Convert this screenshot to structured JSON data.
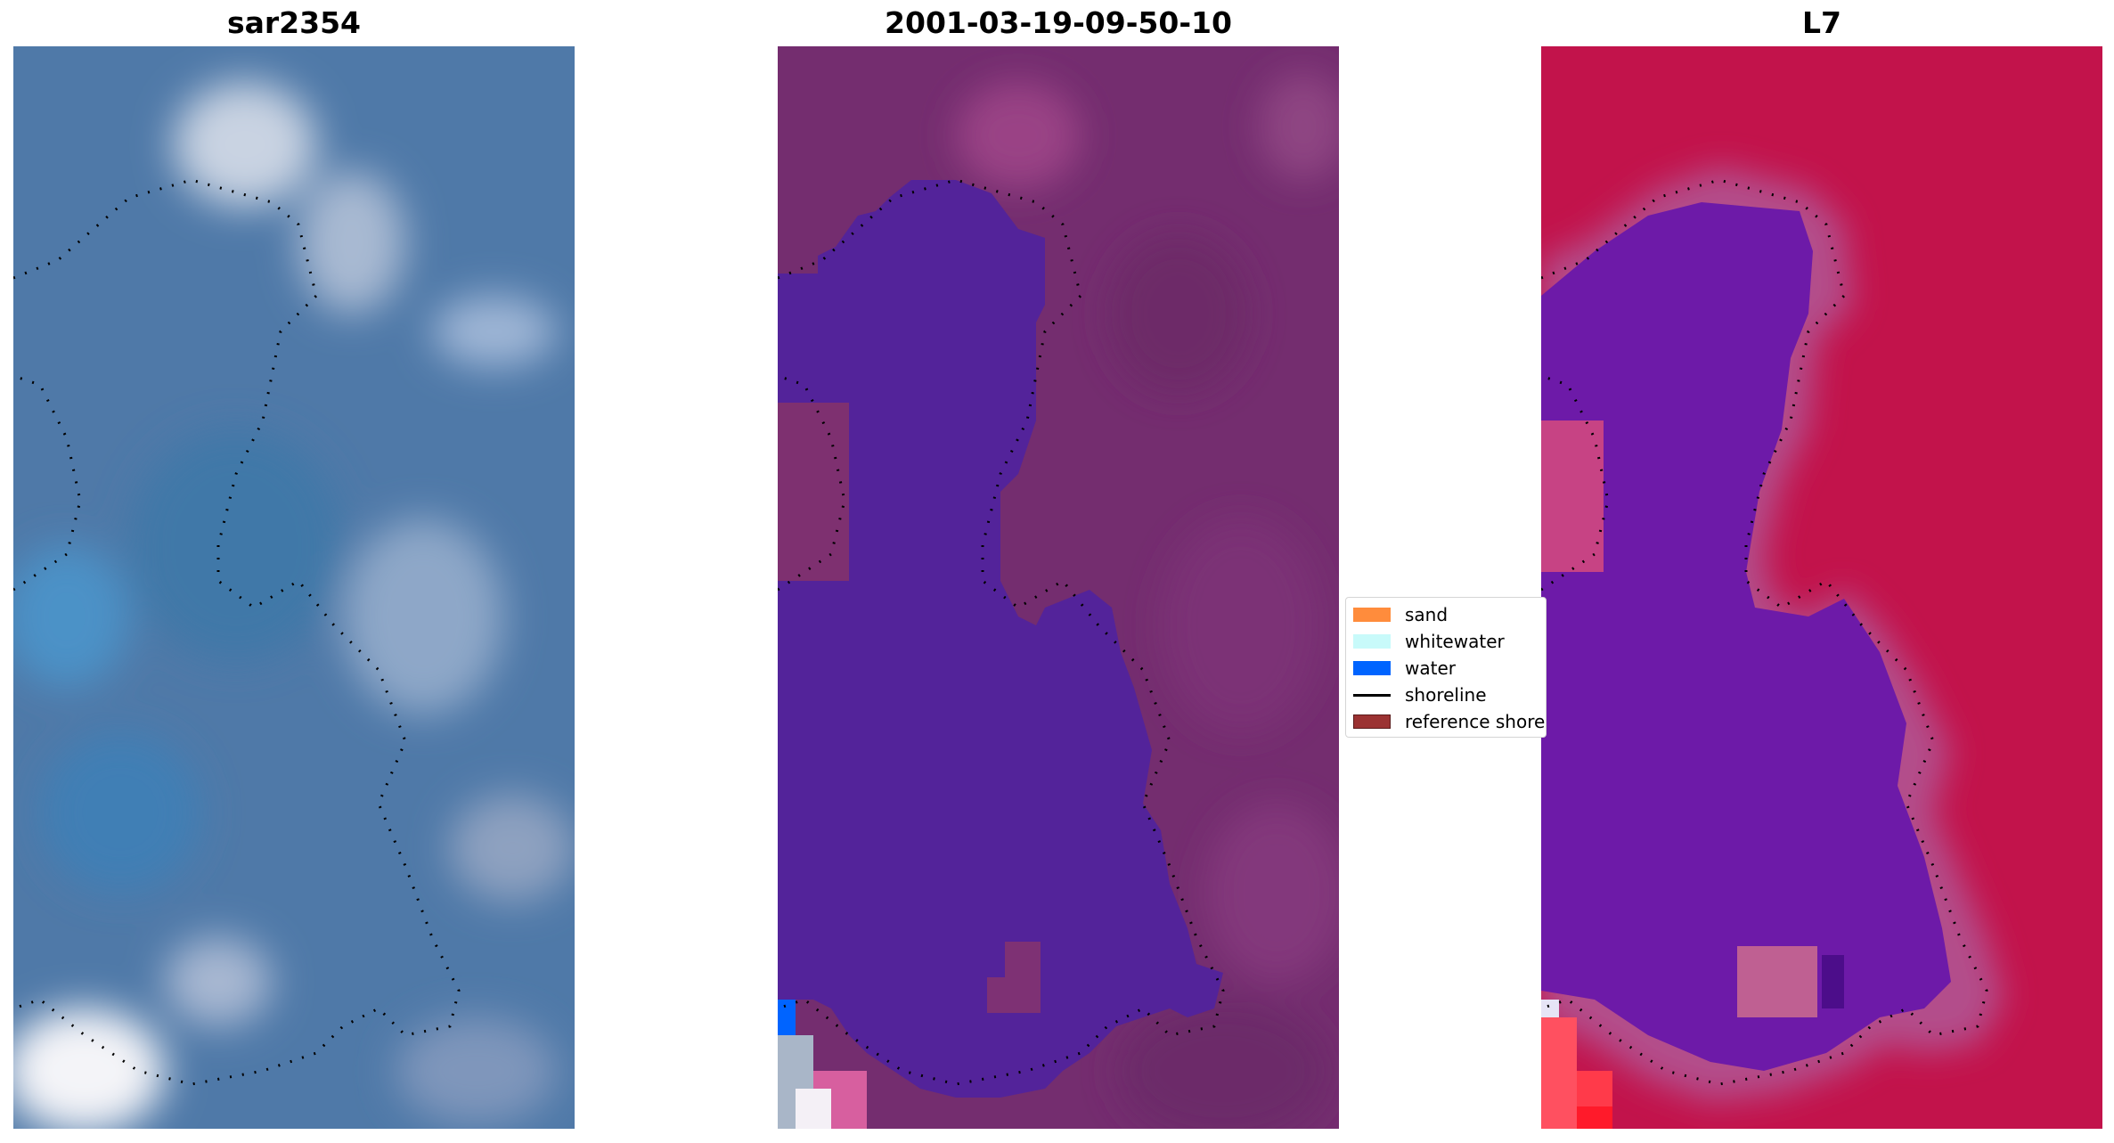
{
  "panels": [
    {
      "title": "sar2354"
    },
    {
      "title": "2001-03-19-09-50-10"
    },
    {
      "title": "L7"
    }
  ],
  "legend": {
    "items": [
      {
        "label": "sand",
        "kind": "patch",
        "color": "#ff8c3c"
      },
      {
        "label": "whitewater",
        "kind": "patch",
        "color": "#c8fafa"
      },
      {
        "label": "water",
        "kind": "patch",
        "color": "#0064ff"
      },
      {
        "label": "shoreline",
        "kind": "line",
        "color": "#000000"
      },
      {
        "label": "reference shoreline",
        "kind": "patch",
        "color": "#9b3232"
      }
    ]
  },
  "colors": {
    "rgb_base": "#4f7aa9",
    "ndwi_base": "#6e2c6c",
    "water_class": "#54249a",
    "mndwi_land": "#c2124a",
    "mndwi_water": "#6d1aa8"
  }
}
